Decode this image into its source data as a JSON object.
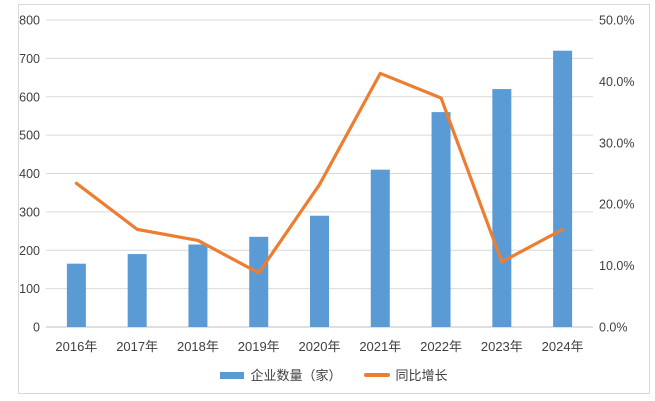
{
  "chart_data": {
    "type": "bar",
    "subtype": "combo-bar-line-dual-axis",
    "categories": [
      "2016年",
      "2017年",
      "2018年",
      "2019年",
      "2020年",
      "2021年",
      "2022年",
      "2023年",
      "2024年"
    ],
    "series": [
      {
        "name": "企业数量（家）",
        "type": "bar",
        "axis": "left",
        "values": [
          165,
          190,
          215,
          235,
          290,
          410,
          560,
          620,
          720
        ],
        "color": "#5b9bd5"
      },
      {
        "name": "同比增长",
        "type": "line",
        "axis": "right",
        "values": [
          23.4,
          15.9,
          14.1,
          8.8,
          23.2,
          41.3,
          37.3,
          10.6,
          15.9
        ],
        "color": "#ed7d31"
      }
    ],
    "title": "",
    "xlabel": "",
    "ylabel_left": "",
    "ylabel_right": "",
    "left_axis": {
      "min": 0,
      "max": 800,
      "step": 100,
      "tick_labels": [
        "0",
        "100",
        "200",
        "300",
        "400",
        "500",
        "600",
        "700",
        "800"
      ]
    },
    "right_axis": {
      "min": 0,
      "max": 50,
      "step": 10,
      "tick_labels": [
        "0.0%",
        "10.0%",
        "20.0%",
        "30.0%",
        "40.0%",
        "50.0%"
      ]
    },
    "grid": true,
    "legend_position": "bottom"
  },
  "legend": {
    "items": [
      {
        "label": "企业数量（家）",
        "swatch": "bar",
        "color": "#5b9bd5"
      },
      {
        "label": "同比增长",
        "swatch": "line",
        "color": "#ed7d31"
      }
    ]
  },
  "colors": {
    "bar": "#5b9bd5",
    "line": "#ed7d31",
    "grid": "#d9d9d9",
    "baseline": "#bfbfbf",
    "axis_text": "#404040",
    "frame_border": "#d9d9d9",
    "background": "#ffffff"
  }
}
